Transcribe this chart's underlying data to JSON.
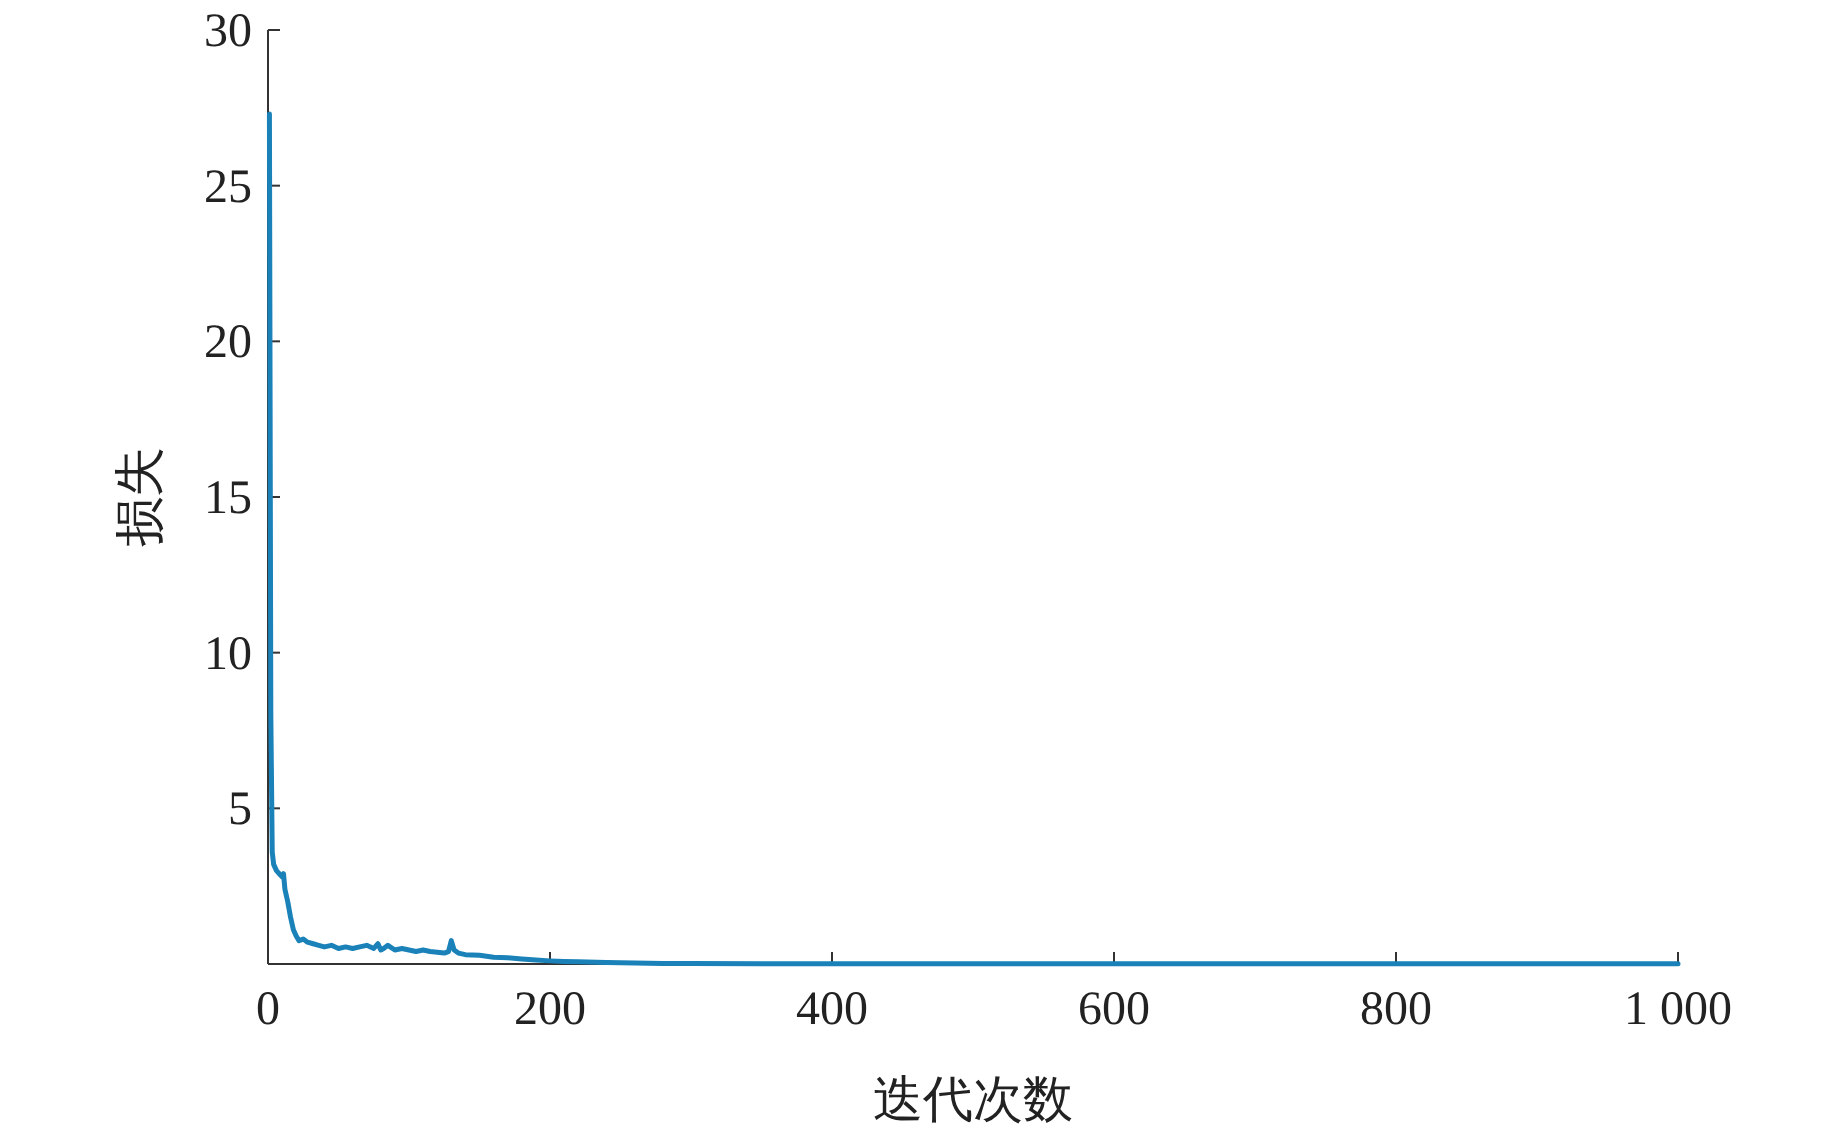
{
  "chart_data": {
    "type": "line",
    "xlabel": "迭代次数",
    "ylabel": "损失",
    "xlim": [
      0,
      1000
    ],
    "ylim": [
      0,
      30
    ],
    "xticks": [
      0,
      200,
      400,
      600,
      800,
      {
        "value": 1000,
        "label": "1 000"
      }
    ],
    "yticks": [
      5,
      10,
      15,
      20,
      25,
      30
    ],
    "grid": false,
    "marker": "none",
    "line_style": "solid",
    "series": [
      {
        "color": "#1a82b8",
        "x": [
          1,
          2,
          3,
          4,
          6,
          8,
          10,
          11,
          12,
          14,
          16,
          18,
          20,
          22,
          25,
          28,
          32,
          36,
          40,
          45,
          50,
          55,
          60,
          65,
          70,
          75,
          78,
          80,
          82,
          85,
          90,
          95,
          100,
          105,
          110,
          115,
          120,
          125,
          128,
          130,
          132,
          135,
          140,
          150,
          160,
          170,
          180,
          190,
          200,
          210,
          220,
          240,
          260,
          280,
          300,
          350,
          400,
          500,
          600,
          700,
          800,
          900,
          1000
        ],
        "values": [
          27.3,
          8,
          3.6,
          3.2,
          3.0,
          2.9,
          2.8,
          2.9,
          2.4,
          2.0,
          1.5,
          1.1,
          0.9,
          0.75,
          0.8,
          0.7,
          0.65,
          0.6,
          0.55,
          0.6,
          0.5,
          0.55,
          0.5,
          0.55,
          0.6,
          0.5,
          0.65,
          0.45,
          0.5,
          0.6,
          0.45,
          0.5,
          0.45,
          0.4,
          0.45,
          0.4,
          0.38,
          0.35,
          0.4,
          0.75,
          0.45,
          0.35,
          0.3,
          0.28,
          0.22,
          0.2,
          0.16,
          0.13,
          0.1,
          0.08,
          0.07,
          0.05,
          0.03,
          0.02,
          0.02,
          0.01,
          0.01,
          0.01,
          0.01,
          0.01,
          0.01,
          0.01,
          0.01
        ]
      }
    ]
  }
}
